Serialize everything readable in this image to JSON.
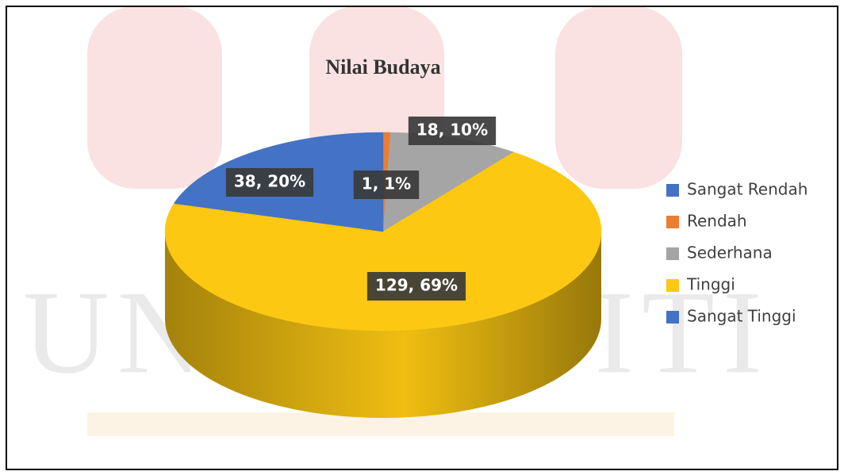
{
  "chart_data": {
    "type": "pie",
    "title": "Nilai Budaya",
    "categories": [
      "Sangat Rendah",
      "Rendah",
      "Sederhana",
      "Tinggi",
      "Sangat Tinggi"
    ],
    "values": [
      0,
      1,
      18,
      129,
      38
    ],
    "value_labels": [
      null,
      "1, 1%",
      "18, 10%",
      "129, 69%",
      "38, 20%"
    ],
    "colors": [
      "#4472c4",
      "#ed7d31",
      "#a5a5a5",
      "#fcc812",
      "#4472c4"
    ],
    "legend": "right"
  },
  "watermark": "UNIVERSITI"
}
